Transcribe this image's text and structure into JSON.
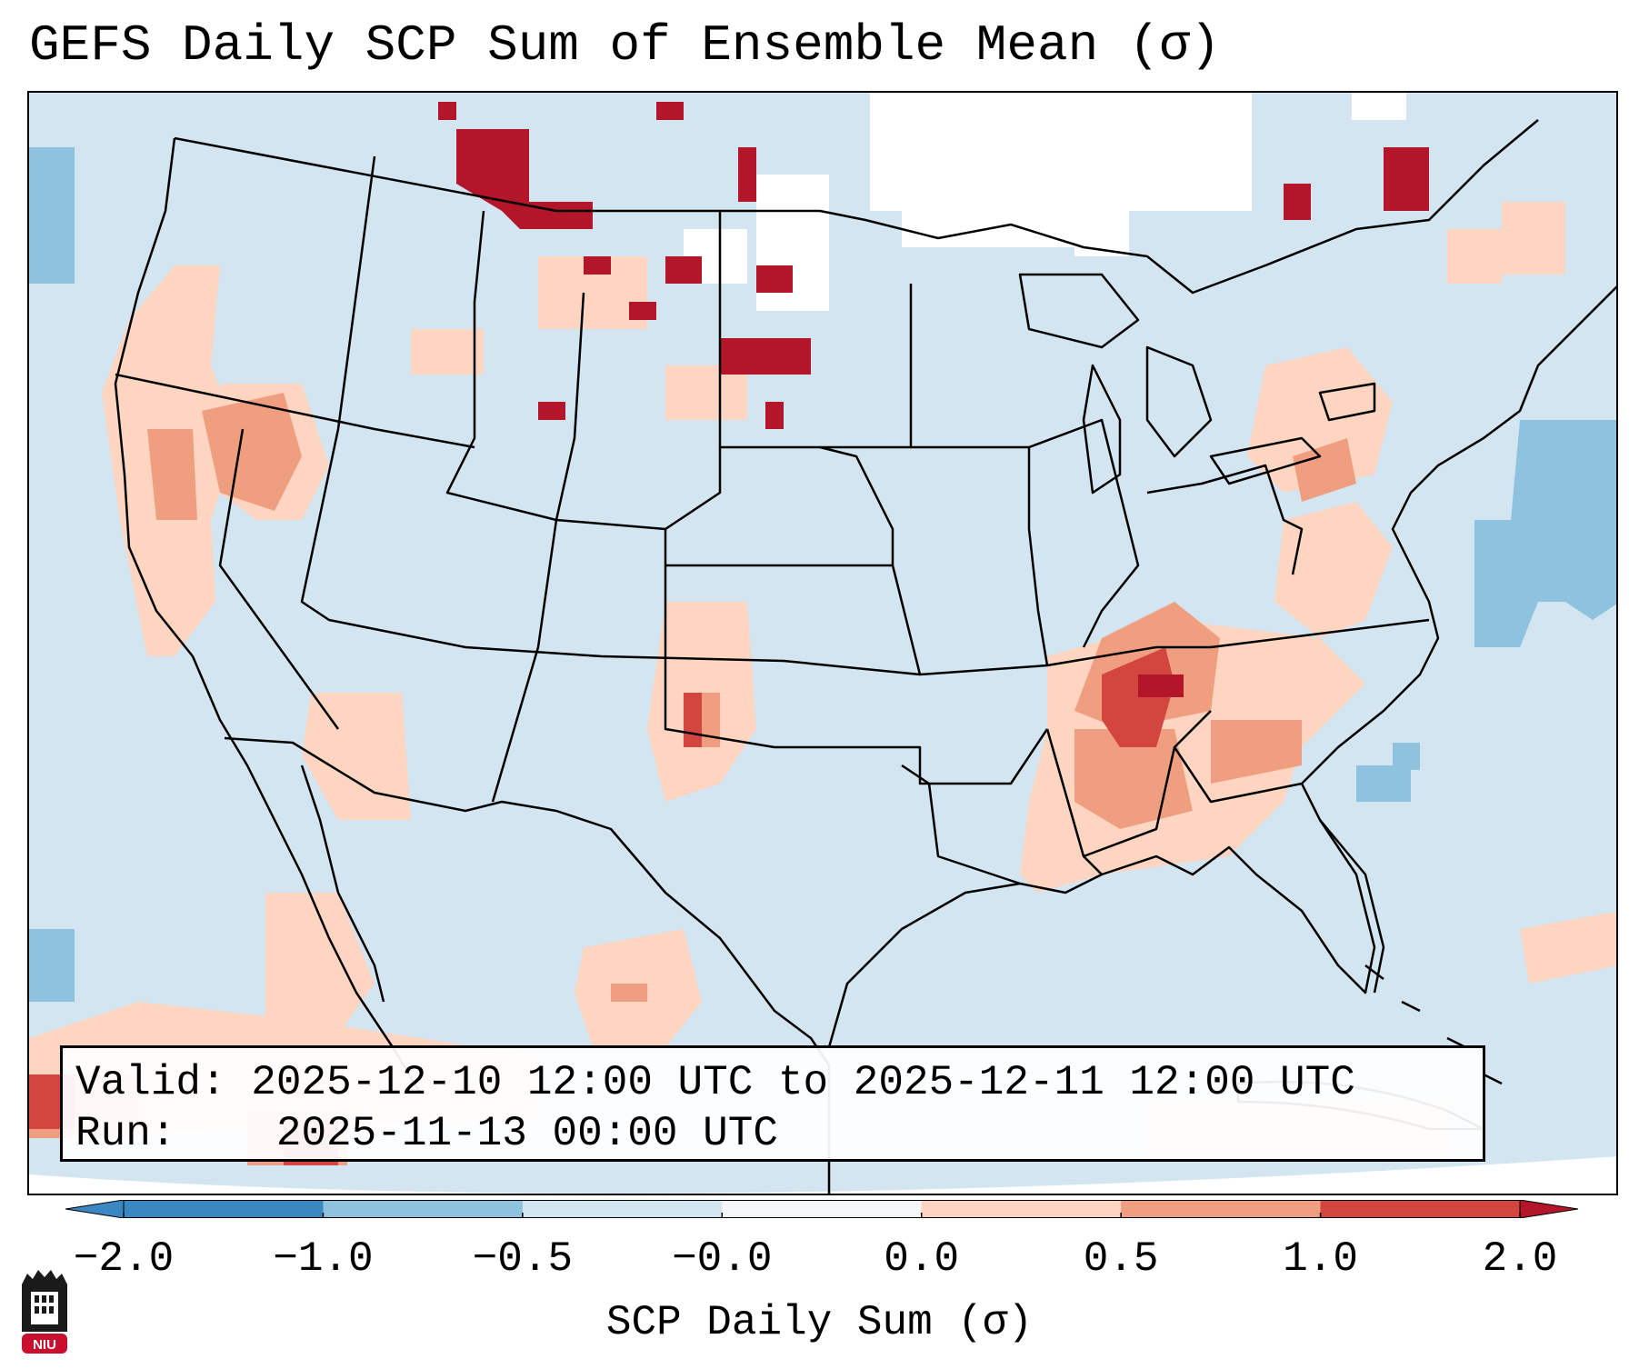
{
  "title": "GEFS Daily SCP Sum of Ensemble Mean (σ)",
  "info": {
    "valid_label": "Valid:",
    "valid_text": "2025-12-10 12:00 UTC to 2025-12-11 12:00 UTC",
    "run_label": "Run:",
    "run_text": "2025-11-13 00:00 UTC"
  },
  "colorbar": {
    "title": "SCP Daily Sum (σ)",
    "ticks": [
      "−2.0",
      "−1.0",
      "−0.5",
      "−0.0",
      "0.0",
      "0.5",
      "1.0",
      "2.0"
    ],
    "colors": [
      "#3a87c2",
      "#8ec2df",
      "#d3e5f1",
      "#f4f6f8",
      "#fdd5c1",
      "#ef9f80",
      "#d2463f",
      "#b31529"
    ]
  },
  "logo": {
    "text": "NIU"
  },
  "colors": {
    "ocean_neutral": "#d3e5f1",
    "land_neutral": "#d3e5f1",
    "light_warm": "#fdd5c1",
    "mid_warm": "#ef9f80",
    "strong_warm": "#d2463f",
    "extreme_warm": "#b31529",
    "light_cool": "#8ec2df",
    "missing": "#ffffff"
  }
}
